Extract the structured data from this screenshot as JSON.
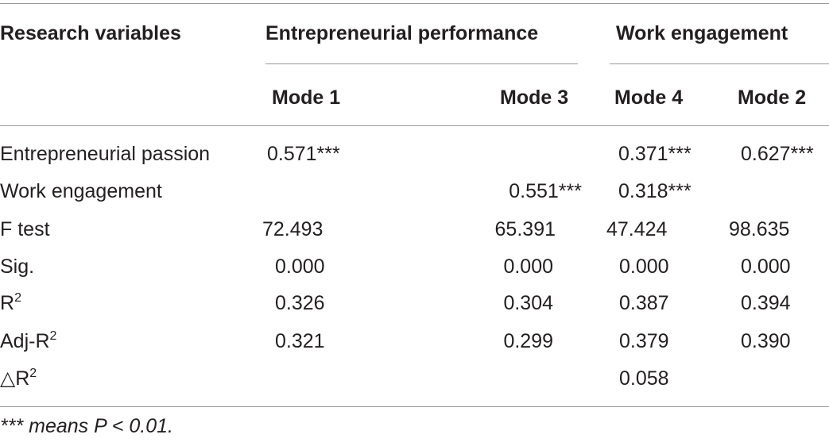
{
  "table": {
    "header": {
      "row_label": "Research variables",
      "group_ep": "Entrepreneurial performance",
      "group_we": "Work engagement",
      "modes": [
        "Mode 1",
        "Mode 3",
        "Mode 4",
        "Mode 2"
      ]
    },
    "rows": [
      {
        "label": "Entrepreneurial passion",
        "sup": "",
        "cells": [
          "0.571***",
          "",
          "0.371***",
          "0.627***"
        ]
      },
      {
        "label": "Work engagement",
        "sup": "",
        "cells": [
          "",
          "0.551***",
          "0.318***",
          ""
        ]
      },
      {
        "label": "F test",
        "sup": "",
        "cells": [
          "72.493",
          "65.391",
          "47.424",
          "98.635"
        ]
      },
      {
        "label": "Sig.",
        "sup": "",
        "cells": [
          "0.000",
          "0.000",
          "0.000",
          "0.000"
        ]
      },
      {
        "label": "R",
        "sup": "2",
        "cells": [
          "0.326",
          "0.304",
          "0.387",
          "0.394"
        ]
      },
      {
        "label": "Adj-R",
        "sup": "2",
        "cells": [
          "0.321",
          "0.299",
          "0.379",
          "0.390"
        ]
      },
      {
        "label": "△R",
        "sup": "2",
        "cells": [
          "",
          "",
          "0.058",
          ""
        ]
      }
    ],
    "footnote": "*** means P < 0.01."
  }
}
